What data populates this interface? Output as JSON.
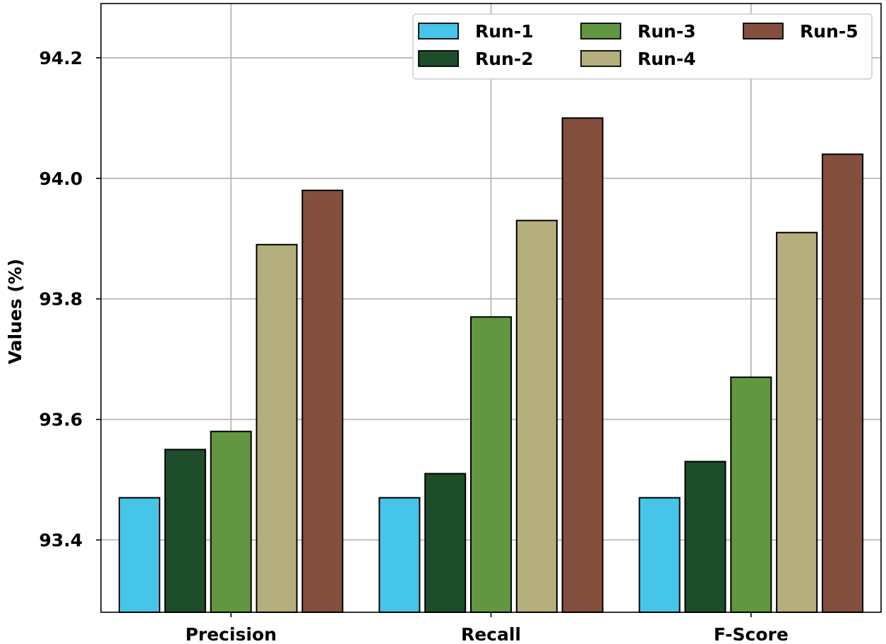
{
  "chart_data": {
    "type": "bar",
    "categories": [
      "Precision",
      "Recall",
      "F-Score"
    ],
    "series": [
      {
        "name": "Run-1",
        "color": "#45c5e8",
        "values": [
          93.47,
          93.47,
          93.47
        ]
      },
      {
        "name": "Run-2",
        "color": "#1d4d2a",
        "values": [
          93.55,
          93.51,
          93.53
        ]
      },
      {
        "name": "Run-3",
        "color": "#629640",
        "values": [
          93.58,
          93.77,
          93.67
        ]
      },
      {
        "name": "Run-4",
        "color": "#b5ae7d",
        "values": [
          93.89,
          93.93,
          93.91
        ]
      },
      {
        "name": "Run-5",
        "color": "#844f3d",
        "values": [
          93.98,
          94.1,
          94.04
        ]
      }
    ],
    "xlabel": "",
    "ylabel": "Values (%)",
    "ylim": [
      93.28,
      94.29
    ],
    "yticks": [
      "93.4",
      "93.6",
      "93.8",
      "94.0",
      "94.2"
    ],
    "grid": true,
    "legend_position": "top-right"
  }
}
